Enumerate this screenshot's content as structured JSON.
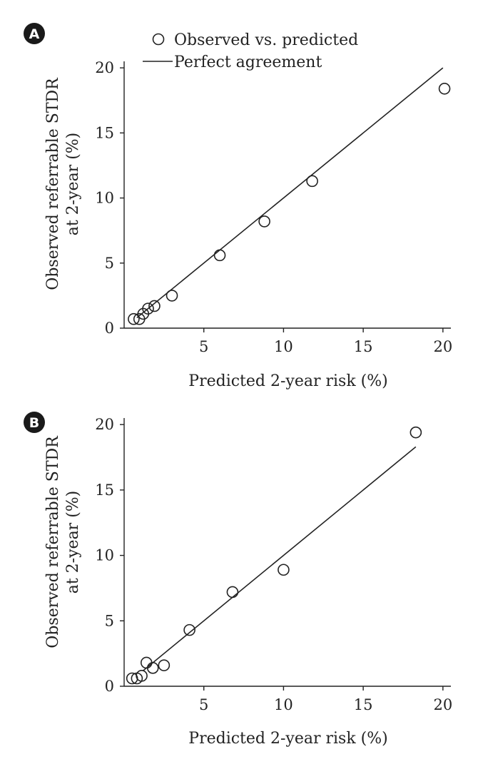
{
  "legend": {
    "observed": "Observed vs. predicted",
    "perfect": "Perfect agreement"
  },
  "chart_data": [
    {
      "panel": "A",
      "type": "scatter",
      "xlabel": "Predicted 2-year risk (%)",
      "ylabel": [
        "Observed referrable STDR",
        "at 2-year (%)"
      ],
      "xlim": [
        0,
        20.5
      ],
      "ylim": [
        0,
        20.5
      ],
      "xticks": [
        5,
        10,
        15,
        20
      ],
      "yticks": [
        0,
        5,
        10,
        15,
        20
      ],
      "series": [
        {
          "name": "Observed vs. predicted",
          "points": [
            {
              "x": 0.6,
              "y": 0.7
            },
            {
              "x": 0.95,
              "y": 0.7
            },
            {
              "x": 1.2,
              "y": 1.1
            },
            {
              "x": 1.5,
              "y": 1.5
            },
            {
              "x": 1.9,
              "y": 1.7
            },
            {
              "x": 3.0,
              "y": 2.5
            },
            {
              "x": 6.0,
              "y": 5.6
            },
            {
              "x": 8.8,
              "y": 8.2
            },
            {
              "x": 11.8,
              "y": 11.3
            },
            {
              "x": 20.1,
              "y": 18.4
            }
          ]
        },
        {
          "name": "Perfect agreement",
          "line": [
            {
              "x": 0.8,
              "y": 0.8
            },
            {
              "x": 20.0,
              "y": 20.0
            }
          ]
        }
      ]
    },
    {
      "panel": "B",
      "type": "scatter",
      "xlabel": "Predicted 2-year risk (%)",
      "ylabel": [
        "Observed referrable STDR",
        "at 2-year (%)"
      ],
      "xlim": [
        0,
        20.5
      ],
      "ylim": [
        0,
        20.5
      ],
      "xticks": [
        5,
        10,
        15,
        20
      ],
      "yticks": [
        0,
        5,
        10,
        15,
        20
      ],
      "series": [
        {
          "name": "Observed vs. predicted",
          "points": [
            {
              "x": 0.5,
              "y": 0.6
            },
            {
              "x": 0.8,
              "y": 0.6
            },
            {
              "x": 1.1,
              "y": 0.8
            },
            {
              "x": 1.4,
              "y": 1.8
            },
            {
              "x": 1.8,
              "y": 1.4
            },
            {
              "x": 2.5,
              "y": 1.6
            },
            {
              "x": 4.1,
              "y": 4.3
            },
            {
              "x": 6.8,
              "y": 7.2
            },
            {
              "x": 10.0,
              "y": 8.9
            },
            {
              "x": 18.3,
              "y": 19.4
            }
          ]
        },
        {
          "name": "Perfect agreement",
          "line": [
            {
              "x": 1.2,
              "y": 1.2
            },
            {
              "x": 18.3,
              "y": 18.3
            }
          ]
        }
      ]
    }
  ]
}
